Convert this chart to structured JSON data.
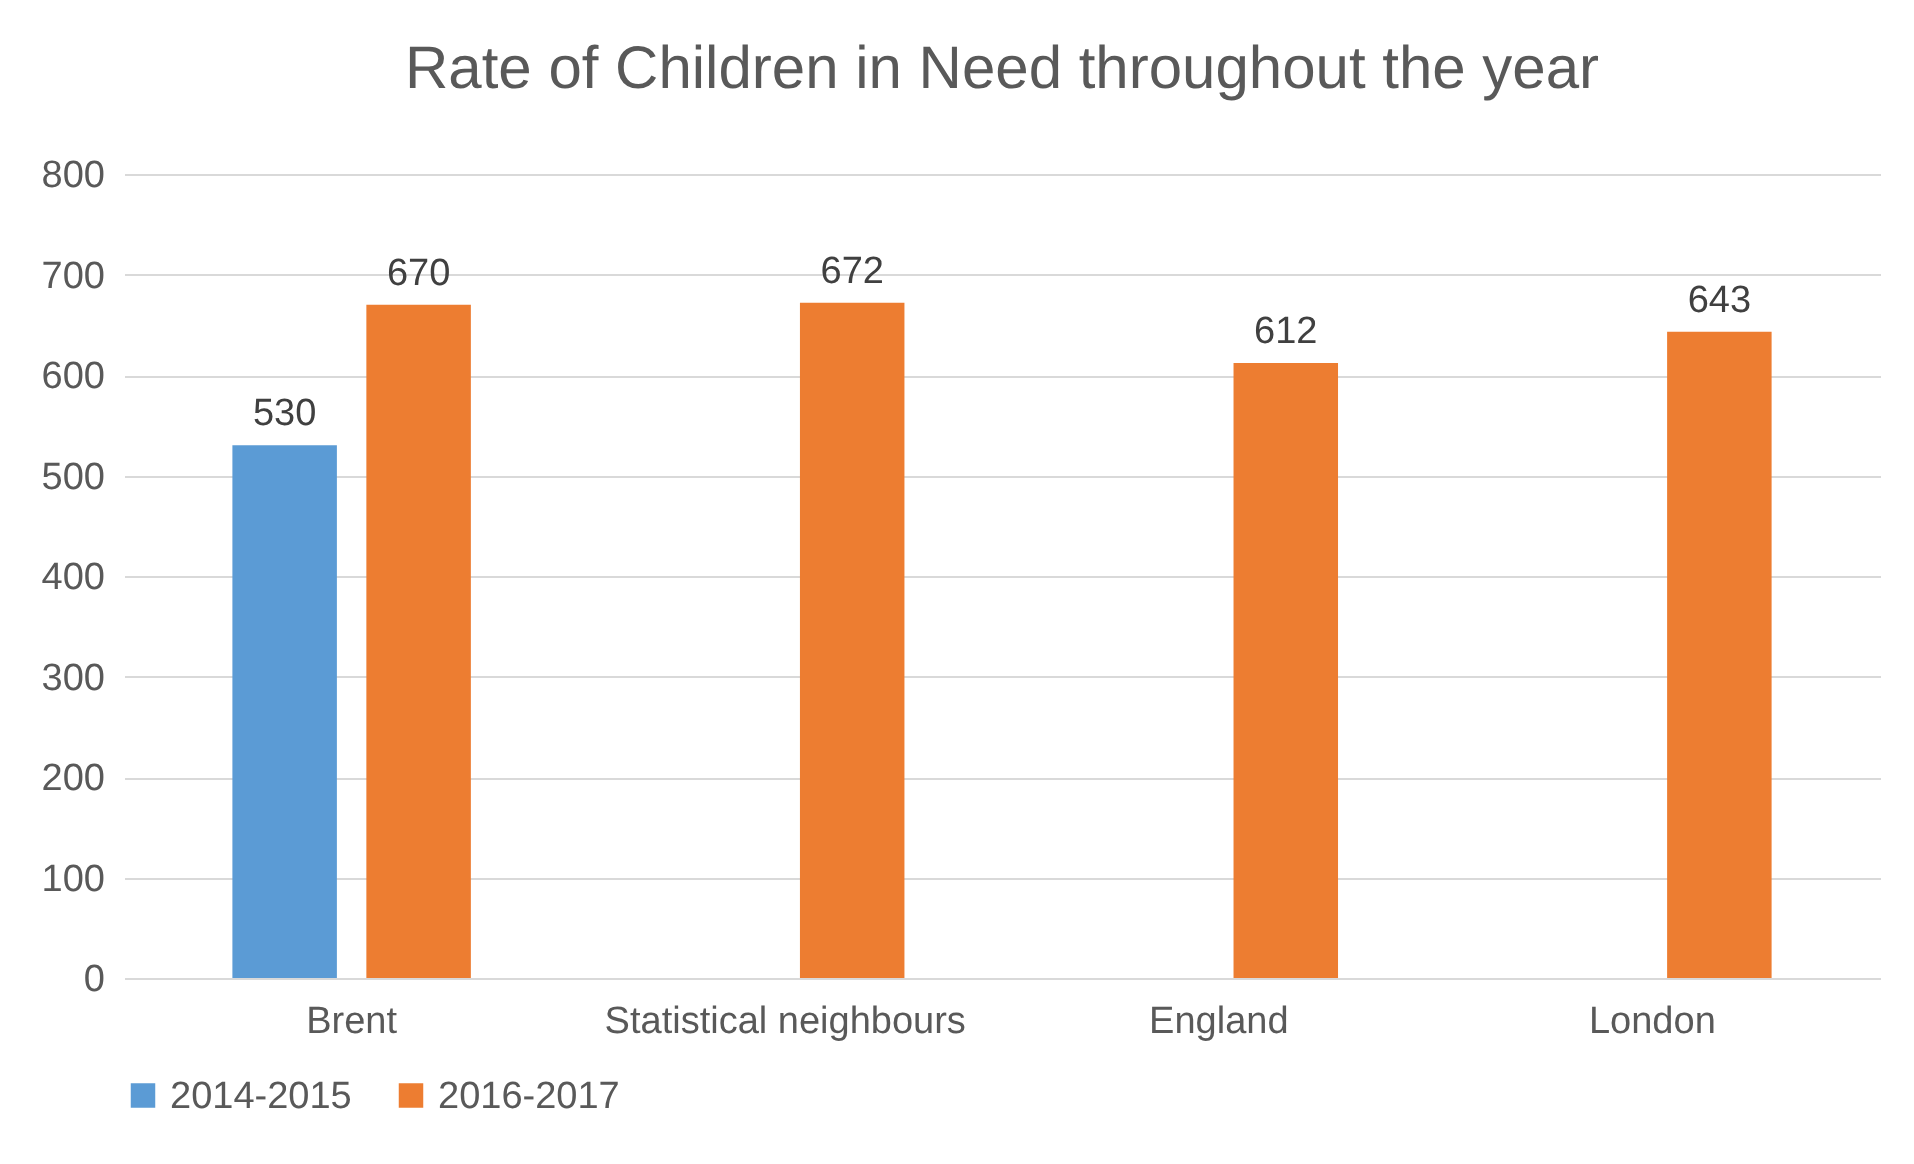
{
  "chart_data": {
    "type": "bar",
    "title": "Rate of Children in Need throughout the year",
    "categories": [
      "Brent",
      "Statistical neighbours",
      "England",
      "London"
    ],
    "series": [
      {
        "name": "2014-2015",
        "color": "#5b9bd5",
        "values": [
          530,
          null,
          null,
          null
        ]
      },
      {
        "name": "2016-2017",
        "color": "#ed7d31",
        "values": [
          670,
          672,
          612,
          643
        ]
      }
    ],
    "ylim": [
      0,
      800
    ],
    "yticks": [
      0,
      100,
      200,
      300,
      400,
      500,
      600,
      700,
      800
    ],
    "grid": "y",
    "legend": "bottom",
    "data_labels": true
  }
}
